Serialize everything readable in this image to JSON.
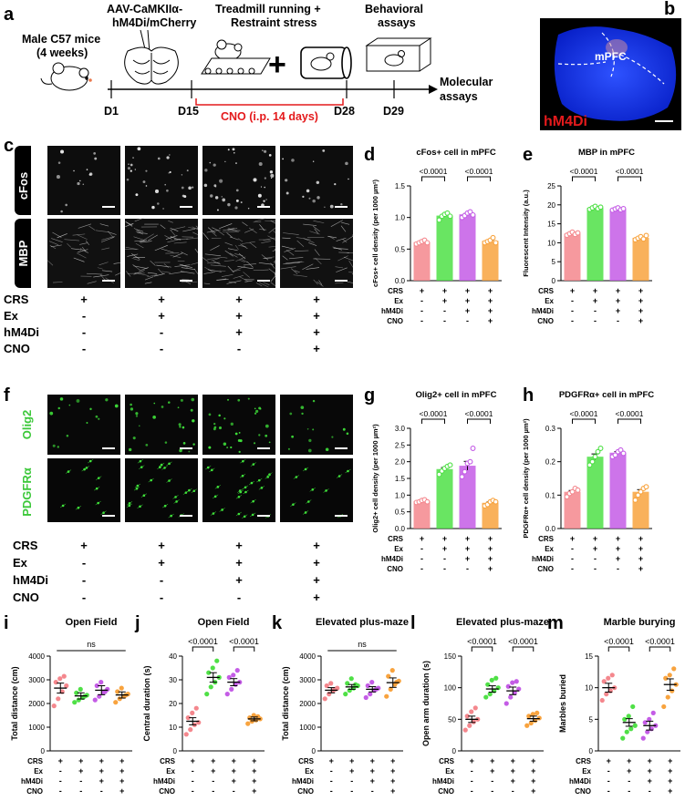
{
  "panel_letters": {
    "a": "a",
    "b": "b",
    "c": "c",
    "d": "d",
    "e": "e",
    "f": "f",
    "g": "g",
    "h": "h",
    "i": "i",
    "j": "j",
    "k": "k",
    "l": "l",
    "m": "m"
  },
  "schematic": {
    "mouse_label_1": "Male C57 mice",
    "mouse_label_2": "(4 weeks)",
    "virus_label_1": "AAV-CaMKIIα-",
    "virus_label_2": "hM4Di/mCherry",
    "treatment_label_1": "Treadmill running +",
    "treatment_label_2": "Restraint stress",
    "behavior_label_1": "Behavioral",
    "behavior_label_2": "assays",
    "molecular_label_1": "Molecular",
    "molecular_label_2": "assays",
    "days": [
      "D1",
      "D15",
      "D28",
      "D29"
    ],
    "cno_label": "CNO (i.p. 14 days)",
    "plus": "+"
  },
  "panel_b": {
    "region_label": "mPFC",
    "construct_label": "hM4Di"
  },
  "image_rows": {
    "c_row1": "cFos",
    "c_row2": "MBP",
    "f_row1": "Olig2",
    "f_row2": "PDGFRα"
  },
  "condition_rows": {
    "labels": [
      "CRS",
      "Ex",
      "hM4Di",
      "CNO"
    ],
    "signs": [
      [
        "+",
        "+",
        "+",
        "+"
      ],
      [
        "-",
        "+",
        "+",
        "+"
      ],
      [
        "-",
        "-",
        "+",
        "+"
      ],
      [
        "-",
        "-",
        "-",
        "+"
      ]
    ]
  },
  "colors": {
    "CRS": "#f4878d",
    "Ex": "#4fe046",
    "Ex_hM4Di": "#c45ce6",
    "Ex_hM4Di_CNO": "#f8a33e",
    "cno_text": "#e41a1c",
    "b_text": "#e41a1c"
  },
  "chart_data": [
    {
      "id": "d",
      "type": "bar",
      "title": "cFos+ cell in mPFC",
      "ylabel": "cFos+ cell density (per 1000 µm²)",
      "ylim": [
        0,
        1.5
      ],
      "yticks": [
        "0.0",
        "0.5",
        "1.0",
        "1.5"
      ],
      "values": [
        0.61,
        1.03,
        1.05,
        0.63
      ],
      "points": [
        [
          0.58,
          0.6,
          0.62,
          0.64,
          0.6
        ],
        [
          0.96,
          1.02,
          1.05,
          1.07,
          1.02
        ],
        [
          1.0,
          1.03,
          1.07,
          1.09,
          1.04
        ],
        [
          0.6,
          0.62,
          0.64,
          0.68,
          0.6
        ]
      ],
      "comparisons": [
        {
          "label": "<0.0001"
        },
        {
          "label": "<0.0001"
        }
      ]
    },
    {
      "id": "e",
      "type": "bar",
      "title": "MBP in mPFC",
      "ylabel": "Fluorescent Intensity (a.u.)",
      "ylim": [
        0,
        25
      ],
      "yticks": [
        "0",
        "5",
        "10",
        "15",
        "20",
        "25"
      ],
      "values": [
        12.4,
        19.2,
        18.9,
        11.3
      ],
      "points": [
        [
          12.0,
          12.4,
          12.8,
          12.2,
          12.6
        ],
        [
          18.8,
          19.2,
          19.6,
          19.0,
          19.4
        ],
        [
          18.6,
          18.9,
          19.2,
          18.7,
          19.0
        ],
        [
          10.8,
          11.2,
          11.6,
          11.0,
          11.9
        ]
      ],
      "comparisons": [
        {
          "label": "<0.0001"
        },
        {
          "label": "<0.0001"
        }
      ]
    },
    {
      "id": "g",
      "type": "bar",
      "title": "Olig2+ cell in mPFC",
      "ylabel": "Olig2+ cell density (per 1000 µm²)",
      "ylim": [
        0,
        3.0
      ],
      "yticks": [
        "0.0",
        "0.5",
        "1.0",
        "1.5",
        "2.0",
        "2.5",
        "3.0"
      ],
      "values": [
        0.82,
        1.78,
        1.88,
        0.77
      ],
      "points": [
        [
          0.78,
          0.8,
          0.84,
          0.86,
          0.8
        ],
        [
          1.62,
          1.72,
          1.8,
          1.86,
          1.9
        ],
        [
          1.55,
          1.7,
          1.95,
          2.0,
          2.4
        ],
        [
          0.68,
          0.72,
          0.8,
          0.84,
          0.8
        ]
      ],
      "comparisons": [
        {
          "label": "<0.0001"
        },
        {
          "label": "<0.0001"
        }
      ]
    },
    {
      "id": "h",
      "type": "bar",
      "title": "PDGFRα+ cell in mPFC",
      "ylabel": "PDGFRα+ cell density (per 1000 µm²)",
      "ylim": [
        0,
        0.3
      ],
      "yticks": [
        "0.0",
        "0.1",
        "0.2",
        "0.3"
      ],
      "values": [
        0.11,
        0.215,
        0.227,
        0.11
      ],
      "points": [
        [
          0.095,
          0.105,
          0.11,
          0.12,
          0.115
        ],
        [
          0.19,
          0.2,
          0.215,
          0.23,
          0.24
        ],
        [
          0.215,
          0.22,
          0.23,
          0.235,
          0.225
        ],
        [
          0.085,
          0.1,
          0.11,
          0.12,
          0.125
        ]
      ],
      "comparisons": [
        {
          "label": "<0.0001"
        },
        {
          "label": "<0.0001"
        }
      ]
    },
    {
      "id": "i",
      "type": "scatter",
      "title": "Open Field",
      "ylabel": "Total distance (cm)",
      "ylim": [
        0,
        4000
      ],
      "yticks": [
        "0",
        "1000",
        "2000",
        "3000",
        "4000"
      ],
      "means": [
        2650,
        2320,
        2560,
        2360
      ],
      "sem": [
        210,
        130,
        190,
        130
      ],
      "points": [
        [
          1900,
          2200,
          2500,
          2750,
          2900,
          3050,
          3150
        ],
        [
          2050,
          2150,
          2250,
          2350,
          2450,
          2600,
          2300
        ],
        [
          2150,
          2300,
          2450,
          2600,
          2750,
          2900,
          2500
        ],
        [
          2050,
          2200,
          2300,
          2400,
          2500,
          2650,
          2350
        ]
      ],
      "comparisons": [
        {
          "label": "ns"
        }
      ]
    },
    {
      "id": "j",
      "type": "scatter",
      "title": "Open Field",
      "ylabel": "Central duration (s)",
      "ylim": [
        0,
        40
      ],
      "yticks": [
        "0",
        "10",
        "20",
        "30",
        "40"
      ],
      "means": [
        12.5,
        31,
        29,
        13.5
      ],
      "sem": [
        1.5,
        2.0,
        1.5,
        0.8
      ],
      "points": [
        [
          7,
          9,
          11,
          12,
          14,
          16,
          18
        ],
        [
          24,
          27,
          29,
          31,
          33,
          35,
          38
        ],
        [
          24,
          26,
          28,
          29,
          31,
          32,
          34
        ],
        [
          11.5,
          12.5,
          13,
          13.5,
          14,
          15,
          14.5
        ]
      ],
      "comparisons": [
        {
          "label": "<0.0001"
        },
        {
          "label": "<0.0001"
        }
      ]
    },
    {
      "id": "k",
      "type": "scatter",
      "title": "Elevated plus-maze",
      "ylabel": "Total distance (cm)",
      "ylim": [
        0,
        4000
      ],
      "yticks": [
        "0",
        "1000",
        "2000",
        "3000",
        "4000"
      ],
      "means": [
        2560,
        2700,
        2600,
        2880
      ],
      "sem": [
        110,
        100,
        110,
        200
      ],
      "points": [
        [
          2200,
          2400,
          2550,
          2650,
          2750,
          2850,
          2600
        ],
        [
          2400,
          2550,
          2650,
          2750,
          2850,
          3050,
          2800
        ],
        [
          2250,
          2400,
          2550,
          2650,
          2750,
          2900,
          2600
        ],
        [
          2300,
          2600,
          2800,
          2950,
          3150,
          3400,
          2900
        ]
      ],
      "comparisons": [
        {
          "label": "ns"
        }
      ]
    },
    {
      "id": "l",
      "type": "scatter",
      "title": "Elevated plus-maze",
      "ylabel": "Open arm duration (s)",
      "ylim": [
        0,
        150
      ],
      "yticks": [
        "0",
        "50",
        "100",
        "150"
      ],
      "means": [
        50,
        98,
        95,
        51
      ],
      "sem": [
        5,
        5,
        6,
        4
      ],
      "points": [
        [
          33,
          40,
          46,
          50,
          55,
          62,
          68
        ],
        [
          85,
          90,
          95,
          100,
          105,
          112,
          115
        ],
        [
          75,
          85,
          92,
          98,
          102,
          108,
          110
        ],
        [
          40,
          44,
          48,
          52,
          55,
          58,
          60
        ]
      ],
      "comparisons": [
        {
          "label": "<0.0001"
        },
        {
          "label": "<0.0001"
        }
      ]
    },
    {
      "id": "m",
      "type": "scatter",
      "title": "Marble burying",
      "ylabel": "Marbles buried",
      "ylim": [
        0,
        15
      ],
      "yticks": [
        "0",
        "5",
        "10",
        "15"
      ],
      "means": [
        10,
        4.5,
        4,
        10.5
      ],
      "sem": [
        0.7,
        0.6,
        0.7,
        0.9
      ],
      "points": [
        [
          8,
          9,
          9.5,
          10,
          11,
          11.5,
          12
        ],
        [
          2,
          3,
          3.5,
          4,
          5,
          5.5,
          7
        ],
        [
          2,
          3,
          3.5,
          4,
          4.5,
          5,
          6
        ],
        [
          7,
          8.5,
          9.5,
          10.5,
          11.5,
          12,
          13
        ]
      ],
      "comparisons": [
        {
          "label": "<0.0001"
        },
        {
          "label": "<0.0001"
        }
      ]
    }
  ]
}
